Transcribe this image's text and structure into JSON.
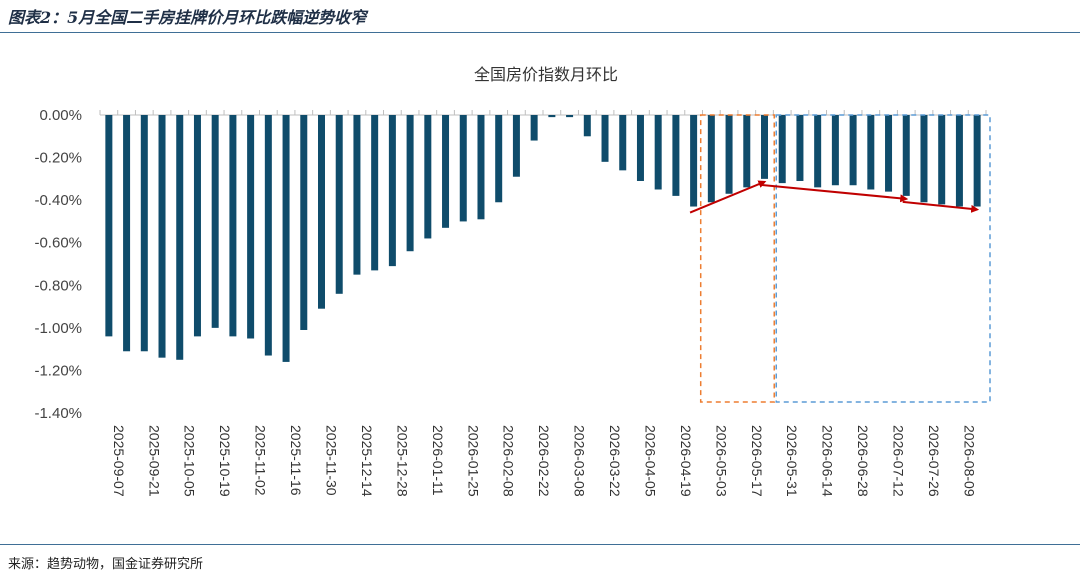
{
  "figure_title": "图表2：5月全国二手房挂牌价月环比跌幅逆势收窄",
  "source": "来源：趋势动物，国金证券研究所",
  "colors": {
    "bar": "#0f4c6b",
    "arrow": "#c00000",
    "box_orange": "#ed7d31",
    "box_blue": "#5b9bd5"
  },
  "chart_data": {
    "type": "bar",
    "title": "全国房价指数月环比",
    "xlabel": "",
    "ylabel": "",
    "ylim": [
      -1.4,
      0
    ],
    "yticks": [
      "0.00%",
      "-0.20%",
      "-0.40%",
      "-0.60%",
      "-0.80%",
      "-1.00%",
      "-1.20%",
      "-1.40%"
    ],
    "grid": false,
    "categories": [
      "2025-09-07",
      "2025-09-14",
      "2025-09-21",
      "2025-09-28",
      "2025-10-05",
      "2025-10-12",
      "2025-10-19",
      "2025-10-26",
      "2025-11-02",
      "2025-11-09",
      "2025-11-16",
      "2025-11-23",
      "2025-11-30",
      "2025-12-07",
      "2025-12-14",
      "2025-12-21",
      "2025-12-28",
      "2026-01-04",
      "2026-01-11",
      "2026-01-18",
      "2026-01-25",
      "2026-02-01",
      "2026-02-08",
      "2026-02-15",
      "2026-02-22",
      "2026-03-01",
      "2026-03-08",
      "2026-03-15",
      "2026-03-22",
      "2026-03-29",
      "2026-04-05",
      "2026-04-12",
      "2026-04-19",
      "2026-04-26",
      "2026-05-03",
      "2026-05-10",
      "2026-05-17",
      "2026-05-24",
      "2026-05-31",
      "2026-06-07",
      "2026-06-14",
      "2026-06-21",
      "2026-06-28",
      "2026-07-05",
      "2026-07-12",
      "2026-07-19",
      "2026-07-26",
      "2026-08-02",
      "2026-08-09",
      "2026-08-16"
    ],
    "tick_labels": [
      "2025-09-07",
      "2025-09-21",
      "2025-10-05",
      "2025-10-19",
      "2025-11-02",
      "2025-11-16",
      "2025-11-30",
      "2025-12-14",
      "2025-12-28",
      "2026-01-11",
      "2026-01-25",
      "2026-02-08",
      "2026-02-22",
      "2026-03-08",
      "2026-03-22",
      "2026-04-05",
      "2026-04-19",
      "2026-05-03",
      "2026-05-17",
      "2026-05-31",
      "2026-06-14",
      "2026-06-28",
      "2026-07-12",
      "2026-07-26",
      "2026-08-09"
    ],
    "values": [
      -1.04,
      -1.11,
      -1.11,
      -1.14,
      -1.15,
      -1.04,
      -1.0,
      -1.04,
      -1.05,
      -1.13,
      -1.16,
      -1.01,
      -0.91,
      -0.84,
      -0.75,
      -0.73,
      -0.71,
      -0.64,
      -0.58,
      -0.53,
      -0.5,
      -0.49,
      -0.41,
      -0.29,
      -0.12,
      -0.01,
      -0.01,
      -0.1,
      -0.22,
      -0.26,
      -0.31,
      -0.35,
      -0.38,
      -0.43,
      -0.41,
      -0.37,
      -0.34,
      -0.3,
      -0.32,
      -0.31,
      -0.34,
      -0.33,
      -0.33,
      -0.35,
      -0.36,
      -0.38,
      -0.41,
      -0.42,
      -0.43,
      -0.43
    ]
  }
}
